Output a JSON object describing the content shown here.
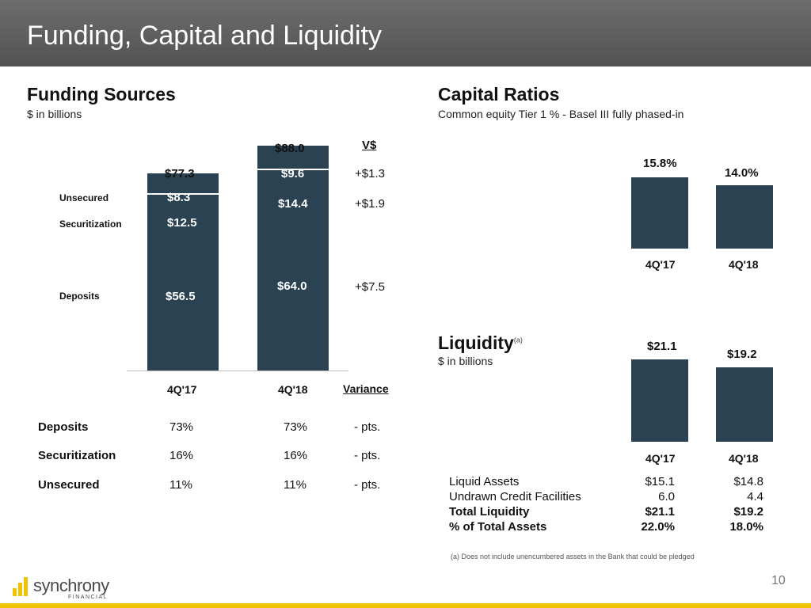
{
  "header": {
    "title": "Funding, Capital and Liquidity"
  },
  "funding": {
    "heading": "Funding Sources",
    "subtitle": "$ in billions",
    "totals": [
      "$77.3",
      "$88.0"
    ],
    "segment_labels": [
      "Unsecured",
      "Securitization",
      "Deposits"
    ],
    "bar_labels": {
      "q17": [
        "$8.3",
        "$12.5",
        "$56.5"
      ],
      "q18": [
        "$9.6",
        "$14.4",
        "$64.0"
      ]
    },
    "variance_header": "V$",
    "variances": [
      "+$1.3",
      "+$1.9",
      "+$7.5"
    ],
    "categories": [
      "4Q'17",
      "4Q'18"
    ],
    "variance_col": "Variance",
    "mix_rows": [
      {
        "label": "Deposits",
        "q17": "73%",
        "q18": "73%",
        "var": "- pts."
      },
      {
        "label": "Securitization",
        "q17": "16%",
        "q18": "16%",
        "var": "- pts."
      },
      {
        "label": "Unsecured",
        "q17": "11%",
        "q18": "11%",
        "var": "- pts."
      }
    ]
  },
  "capital": {
    "heading": "Capital Ratios",
    "subtitle": "Common equity Tier 1 % - Basel III fully phased-in",
    "labels": [
      "15.8%",
      "14.0%"
    ],
    "categories": [
      "4Q'17",
      "4Q'18"
    ]
  },
  "liquidity": {
    "heading": "Liquidity",
    "superscript": "(a)",
    "subtitle": "$ in billions",
    "labels": [
      "$21.1",
      "$19.2"
    ],
    "categories": [
      "4Q'17",
      "4Q'18"
    ],
    "table": [
      {
        "label": "Liquid Assets",
        "q17": "$15.1",
        "q18": "$14.8",
        "bold": false
      },
      {
        "label": "Undrawn Credit Facilities",
        "q17": "6.0",
        "q18": "4.4",
        "bold": false
      },
      {
        "label": "Total Liquidity",
        "q17": "$21.1",
        "q18": "$19.2",
        "bold": true
      },
      {
        "label": "% of Total Assets",
        "q17": "22.0%",
        "q18": "18.0%",
        "bold": true
      }
    ],
    "footnote": "(a) Does not include unencumbered assets in the Bank that could be pledged"
  },
  "footer": {
    "logo_name": "synchrony",
    "logo_sub": "FINANCIAL",
    "page_number": "10"
  },
  "colors": {
    "bar": "#2b4252",
    "title_bar": "#5f5f5f",
    "accent": "#f0c400"
  },
  "chart_data": [
    {
      "type": "bar",
      "stacked": true,
      "title": "Funding Sources",
      "ylabel": "$ in billions",
      "categories": [
        "4Q'17",
        "4Q'18"
      ],
      "series": [
        {
          "name": "Deposits",
          "values": [
            56.5,
            64.0
          ]
        },
        {
          "name": "Securitization",
          "values": [
            12.5,
            14.4
          ]
        },
        {
          "name": "Unsecured",
          "values": [
            8.3,
            9.6
          ]
        }
      ],
      "totals": [
        77.3,
        88.0
      ]
    },
    {
      "type": "bar",
      "title": "Capital Ratios",
      "ylabel": "Common equity Tier 1 % - Basel III fully phased-in",
      "categories": [
        "4Q'17",
        "4Q'18"
      ],
      "values": [
        15.8,
        14.0
      ]
    },
    {
      "type": "bar",
      "title": "Liquidity",
      "ylabel": "$ in billions",
      "categories": [
        "4Q'17",
        "4Q'18"
      ],
      "values": [
        21.1,
        19.2
      ]
    }
  ]
}
